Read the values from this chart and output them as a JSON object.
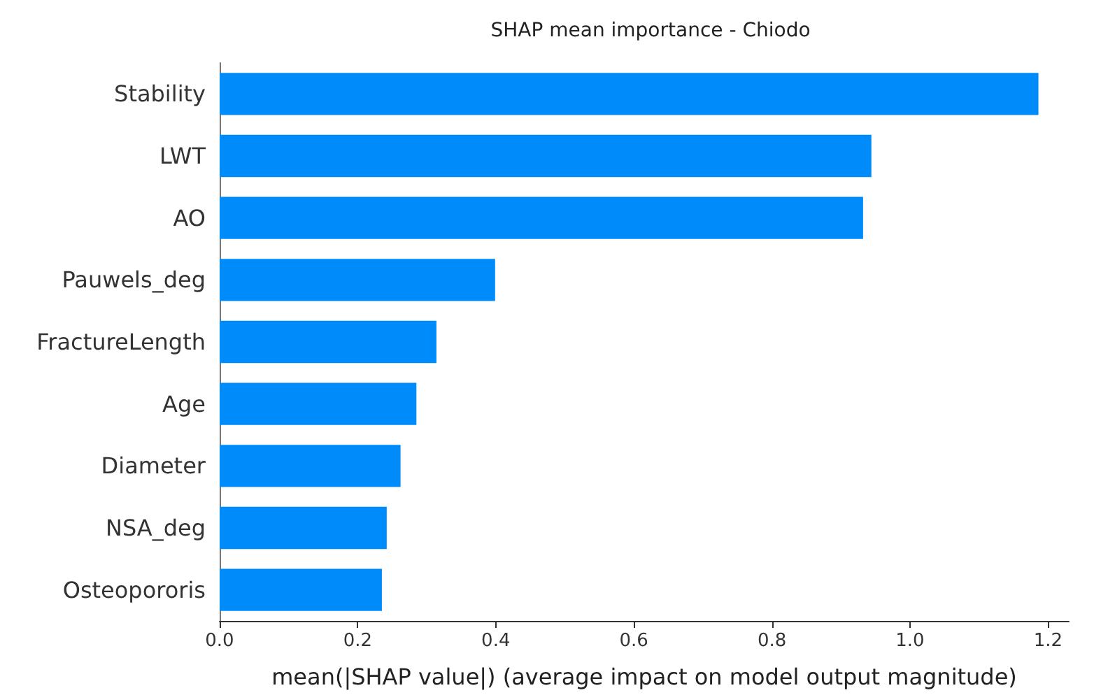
{
  "chart_data": {
    "type": "bar",
    "orientation": "horizontal",
    "title": "SHAP mean importance - Chiodo",
    "xlabel": "mean(|SHAP value|) (average impact on model output magnitude)",
    "categories": [
      "Stability",
      "LWT",
      "AO",
      "Pauwels_deg",
      "FractureLength",
      "Age",
      "Diameter",
      "NSA_deg",
      "Osteopororis"
    ],
    "values": [
      1.186,
      0.944,
      0.932,
      0.399,
      0.314,
      0.285,
      0.262,
      0.242,
      0.235
    ],
    "color": "#008bfb",
    "xlim": [
      0,
      1.23
    ],
    "xticks": [
      {
        "value": 0,
        "label": "0.0"
      },
      {
        "value": 0.2,
        "label": "0.2"
      },
      {
        "value": 0.4,
        "label": "0.4"
      },
      {
        "value": 0.6,
        "label": "0.6"
      },
      {
        "value": 0.8,
        "label": "0.8"
      },
      {
        "value": 1,
        "label": "1.0"
      },
      {
        "value": 1.2,
        "label": "1.2"
      }
    ],
    "grid": false
  }
}
